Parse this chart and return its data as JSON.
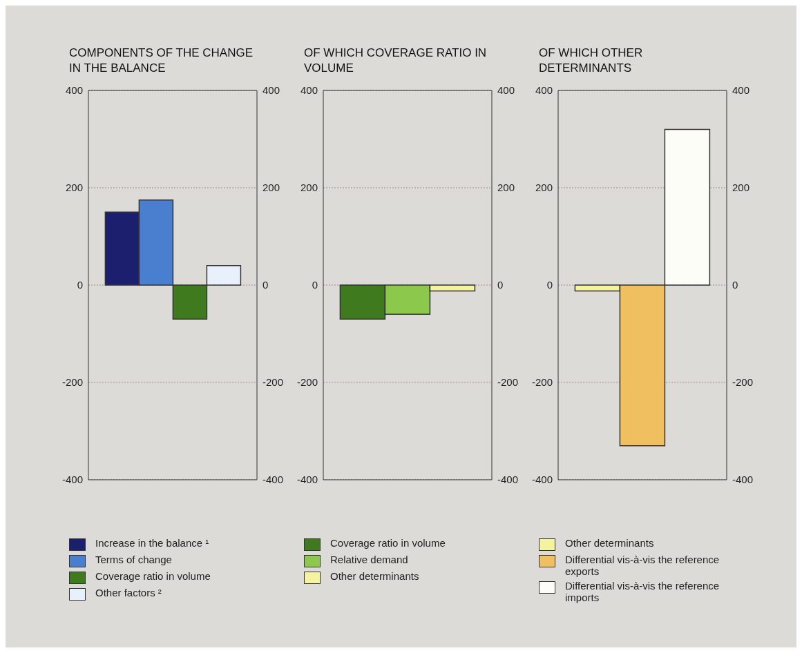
{
  "chart_data": [
    {
      "type": "bar",
      "title": "COMPONENTS OF THE CHANGE IN THE BALANCE",
      "categories": [
        null
      ],
      "series": [
        {
          "name": "Increase in the balance ¹",
          "color": "#1c1f6e",
          "values": [
            150
          ]
        },
        {
          "name": "Terms of change",
          "color": "#4a7fd0",
          "values": [
            175
          ]
        },
        {
          "name": "Coverage ratio in volume",
          "color": "#3f7a1f",
          "values": [
            -70
          ]
        },
        {
          "name": "Other factors ²",
          "color": "#e8f1fb",
          "values": [
            40
          ]
        }
      ],
      "ylim": [
        -400,
        400
      ],
      "yticks": [
        -400,
        -200,
        0,
        200,
        400
      ],
      "y2lim": [
        -400,
        400
      ],
      "y2ticks": [
        -400,
        -200,
        0,
        200,
        400
      ],
      "grid": "y",
      "legend": "bottom"
    },
    {
      "type": "bar",
      "title": "OF WHICH COVERAGE RATIO IN VOLUME",
      "categories": [
        null
      ],
      "series": [
        {
          "name": "Coverage ratio in volume",
          "color": "#3f7a1f",
          "values": [
            -70
          ]
        },
        {
          "name": "Relative demand",
          "color": "#8cc84b",
          "values": [
            -60
          ]
        },
        {
          "name": "Other determinants",
          "color": "#f6f3a0",
          "values": [
            -12
          ]
        }
      ],
      "ylim": [
        -400,
        400
      ],
      "yticks": [
        -400,
        -200,
        0,
        200,
        400
      ],
      "y2lim": [
        -400,
        400
      ],
      "y2ticks": [
        -400,
        -200,
        0,
        200,
        400
      ],
      "grid": "y",
      "legend": "bottom"
    },
    {
      "type": "bar",
      "title": "OF WHICH OTHER DETERMINANTS",
      "categories": [
        null
      ],
      "series": [
        {
          "name": "Other determinants",
          "color": "#f6f3a0",
          "values": [
            -12
          ]
        },
        {
          "name": "Differential vis-à-vis the reference exports",
          "color": "#f0c060",
          "values": [
            -330
          ]
        },
        {
          "name": "Differential vis-à-vis the reference imports",
          "color": "#fdfdf8",
          "values": [
            320
          ]
        }
      ],
      "ylim": [
        -400,
        400
      ],
      "yticks": [
        -400,
        -200,
        0,
        200,
        400
      ],
      "y2lim": [
        -400,
        400
      ],
      "y2ticks": [
        -400,
        -200,
        0,
        200,
        400
      ],
      "grid": "y",
      "legend": "bottom"
    }
  ]
}
